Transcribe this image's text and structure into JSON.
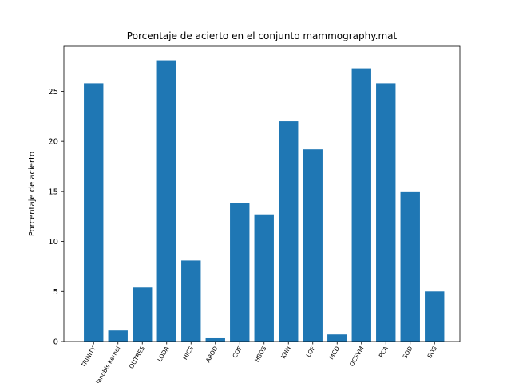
{
  "chart_data": {
    "type": "bar",
    "title": "Porcentaje de acierto en el conjunto mammography.mat",
    "xlabel": "",
    "ylabel": "Porcentaje de acierto",
    "categories": [
      "TRINITY",
      "Mahalanobis Kernel",
      "OUTRES",
      "LODA",
      "HICS",
      "ABOD",
      "COF",
      "HBOS",
      "KNN",
      "LOF",
      "MCD",
      "OCSVM",
      "PCA",
      "SOD",
      "SOS"
    ],
    "values": [
      25.8,
      1.1,
      5.4,
      28.1,
      8.1,
      0.4,
      13.8,
      12.7,
      22.0,
      19.2,
      0.7,
      27.3,
      25.8,
      15.0,
      5.0
    ],
    "ylim": [
      0,
      29.5
    ],
    "yticks": [
      0,
      5,
      10,
      15,
      20,
      25
    ],
    "bar_color": "#1f77b4",
    "grid": false,
    "legend": "none"
  }
}
